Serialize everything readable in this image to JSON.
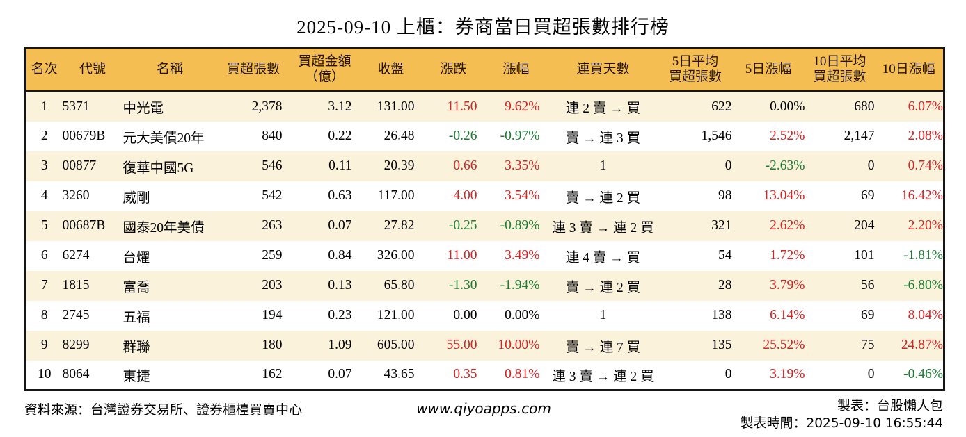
{
  "title": "2025-09-10 上櫃：券商當日買超張數排行榜",
  "chart_data": {
    "type": "table",
    "title": "2025-09-10 上櫃：券商當日買超張數排行榜",
    "columns": [
      "名次",
      "代號",
      "名稱",
      "買超張數",
      "買超金額\n（億）",
      "收盤",
      "漲跌",
      "漲幅",
      "連買天數",
      "5日平均\n買超張數",
      "5日漲幅",
      "10日平均\n買超張數",
      "10日漲幅"
    ],
    "rows": [
      {
        "cells": [
          "1",
          "5371",
          "中光電",
          "2,378",
          "3.12",
          "131.00",
          "11.50",
          "9.62%",
          "連 2 賣 → 買",
          "622",
          "0.00%",
          "680",
          "6.07%"
        ],
        "colors": {
          "6": "up",
          "7": "up",
          "12": "up"
        }
      },
      {
        "cells": [
          "2",
          "00679B",
          "元大美債20年",
          "840",
          "0.22",
          "26.48",
          "-0.26",
          "-0.97%",
          "賣 → 連 3 買",
          "1,546",
          "2.52%",
          "2,147",
          "2.08%"
        ],
        "colors": {
          "6": "down",
          "7": "down",
          "10": "up",
          "12": "up"
        }
      },
      {
        "cells": [
          "3",
          "00877",
          "復華中國5G",
          "546",
          "0.11",
          "20.39",
          "0.66",
          "3.35%",
          "1",
          "0",
          "-2.63%",
          "0",
          "0.74%"
        ],
        "colors": {
          "6": "up",
          "7": "up",
          "10": "down",
          "12": "up"
        }
      },
      {
        "cells": [
          "4",
          "3260",
          "威剛",
          "542",
          "0.63",
          "117.00",
          "4.00",
          "3.54%",
          "賣 → 連 2 買",
          "98",
          "13.04%",
          "69",
          "16.42%"
        ],
        "colors": {
          "6": "up",
          "7": "up",
          "10": "up",
          "12": "up"
        }
      },
      {
        "cells": [
          "5",
          "00687B",
          "國泰20年美債",
          "263",
          "0.07",
          "27.82",
          "-0.25",
          "-0.89%",
          "連 3 賣 → 連 2 買",
          "321",
          "2.62%",
          "204",
          "2.20%"
        ],
        "colors": {
          "6": "down",
          "7": "down",
          "10": "up",
          "12": "up"
        }
      },
      {
        "cells": [
          "6",
          "6274",
          "台燿",
          "259",
          "0.84",
          "326.00",
          "11.00",
          "3.49%",
          "連 4 賣 → 買",
          "54",
          "1.72%",
          "101",
          "-1.81%"
        ],
        "colors": {
          "6": "up",
          "7": "up",
          "10": "up",
          "12": "down"
        }
      },
      {
        "cells": [
          "7",
          "1815",
          "富喬",
          "203",
          "0.13",
          "65.80",
          "-1.30",
          "-1.94%",
          "賣 → 連 2 買",
          "28",
          "3.79%",
          "56",
          "-6.80%"
        ],
        "colors": {
          "6": "down",
          "7": "down",
          "10": "up",
          "12": "down"
        }
      },
      {
        "cells": [
          "8",
          "2745",
          "五福",
          "194",
          "0.23",
          "121.00",
          "0.00",
          "0.00%",
          "1",
          "138",
          "6.14%",
          "69",
          "8.04%"
        ],
        "colors": {
          "10": "up",
          "12": "up"
        }
      },
      {
        "cells": [
          "9",
          "8299",
          "群聯",
          "180",
          "1.09",
          "605.00",
          "55.00",
          "10.00%",
          "賣 → 連 7 買",
          "135",
          "25.52%",
          "75",
          "24.87%"
        ],
        "colors": {
          "6": "up",
          "7": "up",
          "10": "up",
          "12": "up"
        }
      },
      {
        "cells": [
          "10",
          "8064",
          "東捷",
          "162",
          "0.07",
          "43.65",
          "0.35",
          "0.81%",
          "連 3 賣 → 連 2 買",
          "0",
          "3.19%",
          "0",
          "-0.46%"
        ],
        "colors": {
          "6": "up",
          "7": "up",
          "10": "up",
          "12": "down"
        }
      }
    ]
  },
  "footer": {
    "source": "資料來源：台灣證券交易所、證券櫃檯買賣中心",
    "site": "www.qiyoapps.com",
    "made_by": "製表：台股懶人包",
    "time_label": "製表時間：",
    "time_value": "2025-09-10 16:55:44"
  },
  "colors": {
    "header_background": "#F5BE52",
    "row_alternate": "#FBF2DB",
    "up_red": "#D92222",
    "down_green": "#1A7E32"
  }
}
